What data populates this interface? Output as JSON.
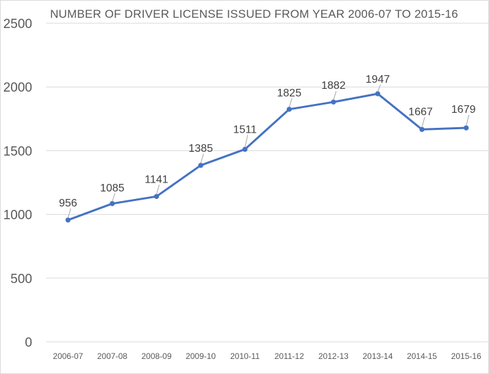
{
  "chart_data": {
    "type": "line",
    "title": "NUMBER OF DRIVER LICENSE ISSUED FROM YEAR 2006-07 TO 2015-16",
    "categories": [
      "2006-07",
      "2007-08",
      "2008-09",
      "2009-10",
      "2010-11",
      "2011-12",
      "2012-13",
      "2013-14",
      "2014-15",
      "2015-16"
    ],
    "series": [
      {
        "values": [
          956,
          1085,
          1141,
          1385,
          1511,
          1825,
          1882,
          1947,
          1667,
          1679
        ]
      }
    ],
    "data_labels": [
      "956",
      "1085",
      "1141",
      "1385",
      "1511",
      "1825",
      "1882",
      "1947",
      "1667",
      "1679"
    ],
    "yticks": [
      "0",
      "500",
      "1000",
      "1500",
      "2000",
      "2500"
    ],
    "ylim": [
      0,
      2500
    ],
    "xlabel": "",
    "ylabel": "",
    "grid": "horizontal",
    "legend": "none",
    "colors": {
      "line": "#4472c4",
      "grid": "#d9d9d9",
      "text": "#595959"
    }
  }
}
